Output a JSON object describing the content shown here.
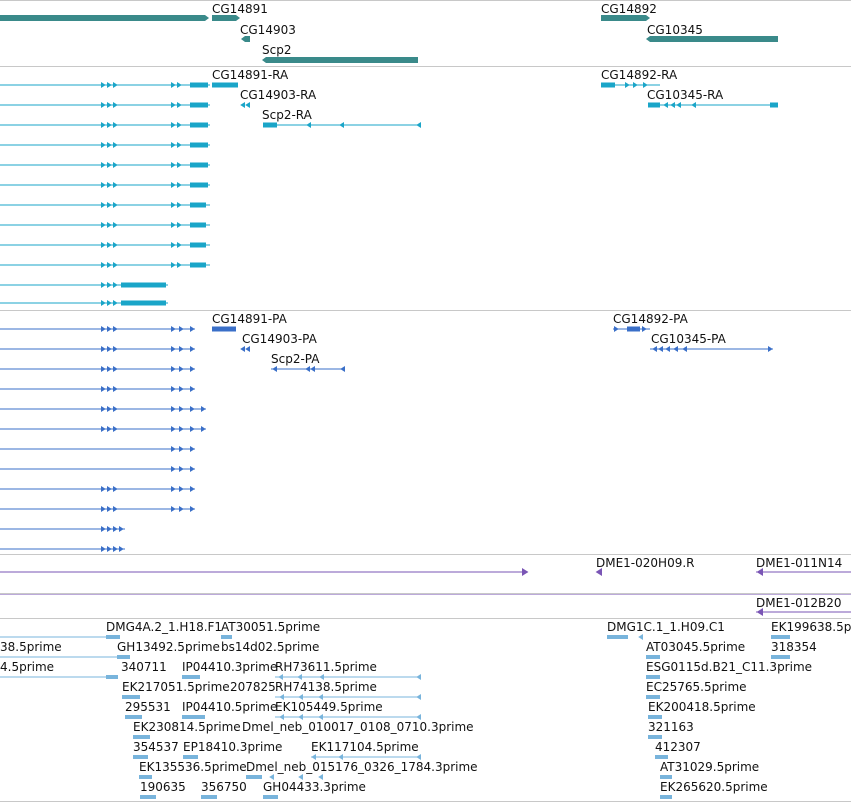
{
  "colors": {
    "gene": "#3a8a8a",
    "mrna": "#1aa5c8",
    "protein": "#3a6fc8",
    "clone": "#7a55b5",
    "est": "#78b4dc"
  },
  "tracks": {
    "genes": {
      "features": [
        {
          "name": "CG14891",
          "strand": "+"
        },
        {
          "name": "CG14903",
          "strand": "-"
        },
        {
          "name": "Scp2",
          "strand": "-"
        },
        {
          "name": "CG14892",
          "strand": "+"
        },
        {
          "name": "CG10345",
          "strand": "-"
        }
      ]
    },
    "mrna": {
      "labels": [
        "CG14891-RA",
        "CG14903-RA",
        "Scp2-RA",
        "CG14892-RA",
        "CG10345-RA"
      ]
    },
    "protein": {
      "labels": [
        "CG14891-PA",
        "CG14903-PA",
        "Scp2-PA",
        "CG14892-PA",
        "CG10345-PA"
      ]
    },
    "clones": {
      "labels": [
        "DME1-020H09.R",
        "DME1-011N14",
        "DME1-012B20"
      ]
    },
    "ests": {
      "labels": [
        "DMG4A.2_1.H18.F1",
        "AT30051.5prime",
        "38.5prime",
        "GH13492.5prime",
        "bs14d02.5prime",
        "4.5prime",
        "340711",
        "IP04410.3prime",
        "RH73611.5prime",
        "EK217051.5prime",
        "207825",
        "RH74138.5prime",
        "295531",
        "IP04410.5prime",
        "EK105449.5prime",
        "EK230814.5prime",
        "Dmel_neb_010017_0108_0710.3prime",
        "354537",
        "EP18410.3prime",
        "EK117104.5prime",
        "EK135536.5prime",
        "Dmel_neb_015176_0326_1784.3prime",
        "190635",
        "356750",
        "GH04433.3prime",
        "DMG1C.1_1.H09.C1",
        "EK199638.5p",
        "AT03045.5prime",
        "318354",
        "ESG0115d.B21_C11.3prime",
        "EC25765.5prime",
        "EK200418.5prime",
        "321163",
        "412307",
        "AT31029.5prime",
        "EK265620.5prime"
      ]
    }
  }
}
